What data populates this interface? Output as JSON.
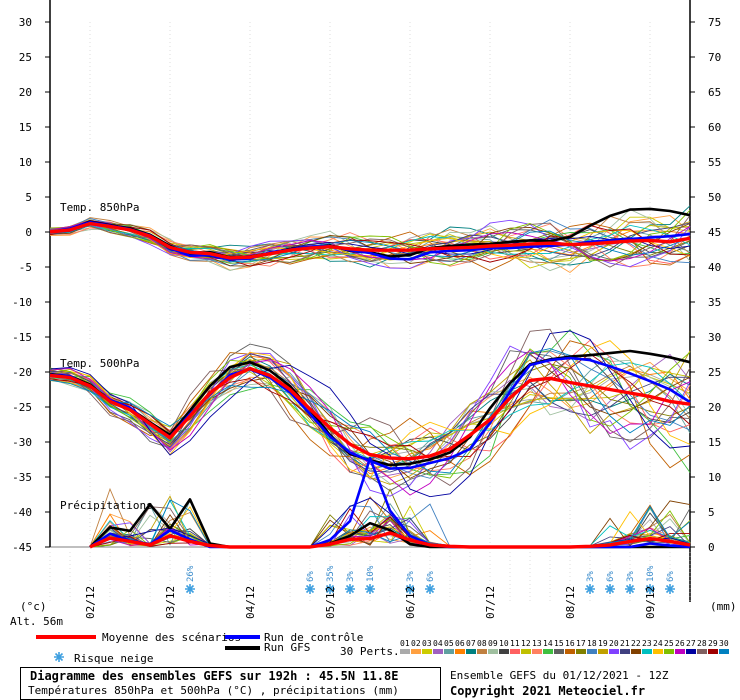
{
  "chart_data": {
    "type": "line",
    "left_axis": {
      "unit": "(°c)",
      "ticks": [
        30,
        25,
        20,
        15,
        10,
        5,
        0,
        -5,
        -10,
        -15,
        -20,
        -25,
        -30,
        -35,
        -40,
        -45
      ],
      "range": [
        -45,
        30
      ]
    },
    "right_axis": {
      "unit": "(mm)",
      "ticks": [
        75,
        70,
        65,
        60,
        55,
        50,
        45,
        40,
        35,
        30,
        25,
        20,
        15,
        10,
        5,
        0
      ],
      "range": [
        0,
        75
      ]
    },
    "x_axis": {
      "unit": "hours",
      "range": [
        0,
        192
      ],
      "date_ticks": [
        {
          "label": "02/12",
          "h": 12
        },
        {
          "label": "03/12",
          "h": 36
        },
        {
          "label": "04/12",
          "h": 60
        },
        {
          "label": "05/12",
          "h": 84
        },
        {
          "label": "06/12",
          "h": 108
        },
        {
          "label": "07/12",
          "h": 132
        },
        {
          "label": "08/12",
          "h": 156
        },
        {
          "label": "09/12",
          "h": 180
        }
      ]
    },
    "panel_labels": {
      "t850": "Temp. 850hPa",
      "t500": "Temp. 500hPa",
      "precip": "Précipitations"
    },
    "altitude": "Alt. 56m",
    "snow_risk": [
      {
        "h": 42,
        "pct": "26%"
      },
      {
        "h": 78,
        "pct": "6%"
      },
      {
        "h": 84,
        "pct": "35%"
      },
      {
        "h": 90,
        "pct": "3%"
      },
      {
        "h": 96,
        "pct": "10%"
      },
      {
        "h": 108,
        "pct": "3%"
      },
      {
        "h": 114,
        "pct": "6%"
      },
      {
        "h": 162,
        "pct": "3%"
      },
      {
        "h": 168,
        "pct": "6%"
      },
      {
        "h": 174,
        "pct": "3%"
      },
      {
        "h": 180,
        "pct": "10%"
      },
      {
        "h": 186,
        "pct": "6%"
      }
    ],
    "series": [
      {
        "name": "Moyenne des scénarios",
        "color": "#ff0000",
        "hours": [
          0,
          6,
          12,
          18,
          24,
          30,
          36,
          42,
          48,
          54,
          60,
          66,
          72,
          78,
          84,
          90,
          96,
          102,
          108,
          114,
          120,
          126,
          132,
          138,
          144,
          150,
          156,
          162,
          168,
          174,
          180,
          186,
          192
        ],
        "t850": [
          0,
          0.3,
          1.2,
          0.8,
          0.3,
          -0.6,
          -2.2,
          -2.9,
          -3.1,
          -3.7,
          -3.6,
          -3.1,
          -2.6,
          -2.3,
          -2.1,
          -2.4,
          -2.6,
          -2.6,
          -2.6,
          -2.4,
          -2.3,
          -2.2,
          -2.0,
          -1.9,
          -1.7,
          -1.6,
          -1.8,
          -1.7,
          -1.5,
          -1.3,
          -1.2,
          -1.4,
          -0.9
        ],
        "t500": [
          -20.5,
          -20.8,
          -22,
          -24.2,
          -25.4,
          -27.4,
          -29.4,
          -26.3,
          -23,
          -20.8,
          -19.5,
          -20.5,
          -22.5,
          -25.3,
          -28,
          -30.3,
          -31.8,
          -32.3,
          -32.4,
          -32,
          -31,
          -29,
          -26.8,
          -23.7,
          -21.2,
          -20.9,
          -21.5,
          -22,
          -22.5,
          -23,
          -23.5,
          -24.2,
          -24.6
        ],
        "precip": [
          null,
          null,
          0,
          1.3,
          0.8,
          0.3,
          1.6,
          0.8,
          0.2,
          0,
          0,
          0,
          0,
          0,
          0.4,
          1.1,
          1.2,
          2.0,
          1.0,
          0.3,
          0.1,
          0,
          0,
          0,
          0,
          0,
          0,
          0.1,
          0.3,
          0.8,
          1.2,
          0.8,
          0.3
        ]
      },
      {
        "name": "Run de contrôle",
        "color": "#0000ff",
        "hours": [
          0,
          6,
          12,
          18,
          24,
          30,
          36,
          42,
          48,
          54,
          60,
          66,
          72,
          78,
          84,
          90,
          96,
          102,
          108,
          114,
          120,
          126,
          132,
          138,
          144,
          150,
          156,
          162,
          168,
          174,
          180,
          186,
          192
        ],
        "t850": [
          0,
          0.5,
          1.4,
          0.9,
          0.4,
          -0.5,
          -2.3,
          -3.4,
          -3.3,
          -3.9,
          -3.8,
          -2.9,
          -2.5,
          -2.1,
          -2.0,
          -2.6,
          -3.0,
          -3.8,
          -3.9,
          -2.9,
          -2.7,
          -2.6,
          -2.3,
          -2.3,
          -2.1,
          -2.0,
          -1.8,
          -1.4,
          -1.2,
          -1.0,
          -0.8,
          -0.6,
          -0.3
        ],
        "t500": [
          -20.4,
          -20.6,
          -22.1,
          -24.0,
          -25.1,
          -27.5,
          -29.3,
          -26.0,
          -23.2,
          -20.4,
          -19.6,
          -20.8,
          -22.9,
          -26.0,
          -29.2,
          -31.5,
          -32.7,
          -33.8,
          -33.7,
          -33.0,
          -32.3,
          -31.0,
          -27.3,
          -22.8,
          -19.0,
          -18.3,
          -18.0,
          -18.3,
          -19.2,
          -20.2,
          -21.3,
          -22.5,
          -24.3
        ],
        "precip": [
          null,
          null,
          0,
          1.9,
          0.9,
          0.4,
          2.4,
          1.1,
          0.0,
          0,
          0,
          0,
          0,
          0,
          1.0,
          3.7,
          12.7,
          5.2,
          1.6,
          0.3,
          0,
          0,
          0,
          0,
          0,
          0,
          0,
          0,
          0,
          0,
          0.5,
          0.2,
          0
        ]
      },
      {
        "name": "Run GFS",
        "color": "#000000",
        "hours": [
          0,
          6,
          12,
          18,
          24,
          30,
          36,
          42,
          48,
          54,
          60,
          66,
          72,
          78,
          84,
          90,
          96,
          102,
          108,
          114,
          120,
          126,
          132,
          138,
          144,
          150,
          156,
          162,
          168,
          174,
          180,
          186,
          192
        ],
        "t850": [
          0,
          0.4,
          1.5,
          1.0,
          0.5,
          -0.4,
          -2.0,
          -3.1,
          -2.9,
          -3.6,
          -3.5,
          -3.0,
          -2.4,
          -2.3,
          -1.9,
          -2.7,
          -2.9,
          -3.5,
          -3.3,
          -2.3,
          -2.0,
          -1.8,
          -1.7,
          -1.4,
          -1.2,
          -1.3,
          -0.7,
          0.9,
          2.3,
          3.2,
          3.3,
          3.0,
          2.4
        ],
        "t500": [
          -20.3,
          -20.6,
          -21.8,
          -24.1,
          -25.2,
          -27.2,
          -29.0,
          -25.5,
          -22.0,
          -19.3,
          -18.6,
          -19.8,
          -22.0,
          -25.4,
          -29.0,
          -31.7,
          -32.6,
          -33.3,
          -33.1,
          -32.5,
          -31.5,
          -29.3,
          -25.2,
          -21.6,
          -18.9,
          -18.2,
          -17.8,
          -17.6,
          -17.3,
          -17.0,
          -17.4,
          -17.9,
          -18.6
        ],
        "precip": [
          null,
          null,
          0,
          2.8,
          2.3,
          6.1,
          2.6,
          6.8,
          0.5,
          0,
          0,
          0,
          0,
          0,
          0.5,
          1.6,
          3.4,
          2.4,
          0.4,
          0,
          0,
          0,
          0,
          0,
          0,
          0,
          0,
          0,
          0,
          0,
          0,
          0,
          0
        ]
      }
    ],
    "perturbations_label": "30 Perts.",
    "perturbations": [
      {
        "id": "01",
        "color": "#aaaaaa"
      },
      {
        "id": "02",
        "color": "#ffa040"
      },
      {
        "id": "03",
        "color": "#cccc00"
      },
      {
        "id": "04",
        "color": "#a060c0"
      },
      {
        "id": "05",
        "color": "#60a0a0"
      },
      {
        "id": "06",
        "color": "#ff8000"
      },
      {
        "id": "07",
        "color": "#008080"
      },
      {
        "id": "08",
        "color": "#c08040"
      },
      {
        "id": "09",
        "color": "#a0c0a0"
      },
      {
        "id": "10",
        "color": "#404040"
      },
      {
        "id": "11",
        "color": "#ff6060"
      },
      {
        "id": "12",
        "color": "#c0c000"
      },
      {
        "id": "13",
        "color": "#ff8060"
      },
      {
        "id": "14",
        "color": "#40c040"
      },
      {
        "id": "15",
        "color": "#606060"
      },
      {
        "id": "16",
        "color": "#c06000"
      },
      {
        "id": "17",
        "color": "#808000"
      },
      {
        "id": "18",
        "color": "#4080c0"
      },
      {
        "id": "19",
        "color": "#c0a000"
      },
      {
        "id": "20",
        "color": "#8040ff"
      },
      {
        "id": "21",
        "color": "#404080"
      },
      {
        "id": "22",
        "color": "#804000"
      },
      {
        "id": "23",
        "color": "#00c0c0"
      },
      {
        "id": "24",
        "color": "#ffc000"
      },
      {
        "id": "25",
        "color": "#80c000"
      },
      {
        "id": "26",
        "color": "#c000c0"
      },
      {
        "id": "27",
        "color": "#0000a0"
      },
      {
        "id": "28",
        "color": "#806060"
      },
      {
        "id": "29",
        "color": "#a00000"
      },
      {
        "id": "30",
        "color": "#0080c0"
      }
    ]
  },
  "legend": {
    "mean": "Moyenne des scénarios",
    "control": "Run de contrôle",
    "gfs": "Run GFS",
    "snow": "Risque neige",
    "ensemble": "Ensemble GEFS du 01/12/2021 - 12Z"
  },
  "footer": {
    "title": "Diagramme des ensembles GEFS sur 192h : 45.5N 11.8E",
    "subtitle": "Températures 850hPa et 500hPa (°C) , précipitations (mm)",
    "copyright": "Copyright 2021 Meteociel.fr"
  }
}
